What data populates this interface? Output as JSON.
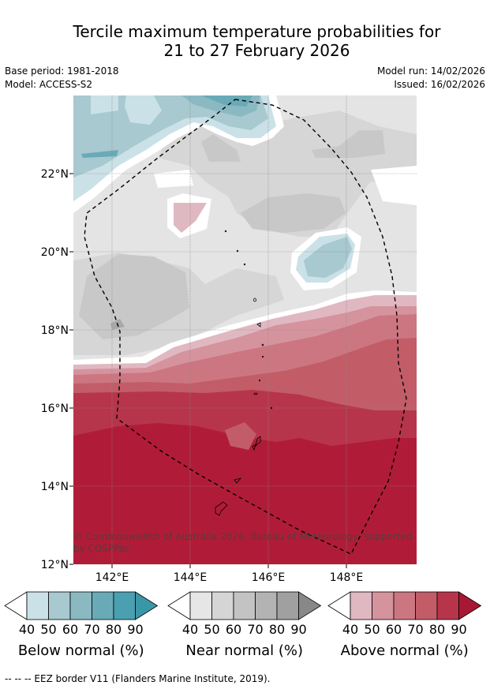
{
  "title_line1": "Tercile maximum temperature probabilities for",
  "title_line2": "21 to 27 February 2026",
  "base_period": "Base period: 1981-2018",
  "model": "Model: ACCESS-S2",
  "model_run": "Model run: 14/02/2026",
  "issued": "Issued: 16/02/2026",
  "lat_labels": [
    "22°N",
    "20°N",
    "18°N",
    "16°N",
    "14°N",
    "12°N"
  ],
  "lon_labels": [
    "142°E",
    "144°E",
    "146°E",
    "148°E"
  ],
  "copyright_line1": "© Commonwealth of Australia 2026, Bureau of Meteorology, supported",
  "copyright_line2": "by COSPPac",
  "colorbars": [
    {
      "name": "Below normal (%)",
      "ticks": [
        "40",
        "50",
        "60",
        "70",
        "80",
        "90"
      ],
      "colors": [
        "#cae1e7",
        "#a7c9cf",
        "#8ab9c2",
        "#69aab7",
        "#4aa0b0",
        "#3a97a8"
      ]
    },
    {
      "name": "Near normal (%)",
      "ticks": [
        "40",
        "50",
        "60",
        "70",
        "80",
        "90"
      ],
      "colors": [
        "#e6e6e6",
        "#d5d5d5",
        "#c3c3c3",
        "#b3b3b3",
        "#a0a0a0",
        "#888888"
      ]
    },
    {
      "name": "Above normal (%)",
      "ticks": [
        "40",
        "50",
        "60",
        "70",
        "80",
        "90"
      ],
      "colors": [
        "#e0b8c2",
        "#d5939e",
        "#cc7681",
        "#c25d68",
        "#b7354a",
        "#a81835"
      ]
    }
  ],
  "eez_note": "--  --  -- EEZ border V11 (Flanders Marine Institute, 2019)."
}
